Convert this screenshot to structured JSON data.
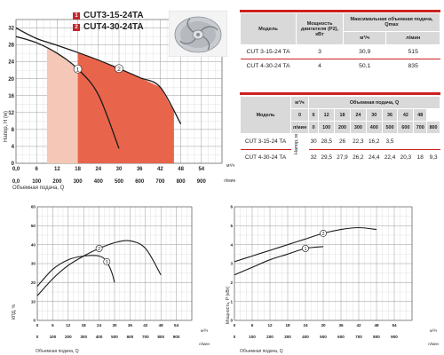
{
  "legend": [
    {
      "num": "1",
      "label": "CUT3-15-24TA"
    },
    {
      "num": "2",
      "label": "CUT4-30-24TA"
    }
  ],
  "table1": {
    "headers": {
      "model": "Модель",
      "power": "Мощность двигателя (P2), кВт",
      "qmax": "Максимальная объемная подача, Qmax",
      "unit_m3": "м³/ч",
      "unit_lmin": "л/мин"
    },
    "rows": [
      {
        "model": "CUT 3-15-24 TA",
        "power": "3",
        "m3": "30,9",
        "lmin": "515"
      },
      {
        "model": "CUT 4-30-24 TA",
        "power": "4",
        "m3": "50,1",
        "lmin": "835"
      }
    ]
  },
  "table2": {
    "headers": {
      "model": "Модель",
      "flow": "Объемная подача, Q",
      "unit_m3": "м³/ч",
      "unit_lmin": "л/мин",
      "head": "Напор, м"
    },
    "m3": [
      "0",
      "6",
      "12",
      "18",
      "24",
      "30",
      "36",
      "42",
      "48"
    ],
    "lmin": [
      "0",
      "100",
      "200",
      "300",
      "400",
      "500",
      "600",
      "700",
      "800"
    ],
    "rows": [
      {
        "model": "CUT 3-15-24 TA",
        "values": [
          "30",
          "28,5",
          "26",
          "22,3",
          "16,2",
          "3,5",
          "",
          "",
          ""
        ]
      },
      {
        "model": "CUT 4-30-24 TA",
        "values": [
          "32",
          "29,5",
          "27,9",
          "26,2",
          "24,4",
          "22,4",
          "20,3",
          "18",
          "9,3"
        ]
      }
    ]
  },
  "chart_data": [
    {
      "type": "line",
      "ylabel": "Напор, H (м)",
      "xlabel": "Объемная подача, Q",
      "x_unit": "м³/ч",
      "x2_unit": "л/мин",
      "xlim": [
        0,
        60
      ],
      "ylim": [
        0,
        34
      ],
      "x_ticks": [
        "0,0",
        "6",
        "12",
        "18",
        "24",
        "30",
        "36",
        "42",
        "48",
        "54"
      ],
      "x2_ticks": [
        "0,0",
        "100",
        "200",
        "300",
        "400",
        "500",
        "600",
        "700",
        "800",
        "900"
      ],
      "y_ticks": [
        "0",
        "4",
        "8",
        "12",
        "16",
        "20",
        "24",
        "28",
        "32"
      ],
      "series": [
        {
          "name": "1",
          "x": [
            0,
            6,
            12,
            18,
            24,
            30
          ],
          "y": [
            30,
            28.5,
            26,
            22.3,
            16.2,
            3.5
          ]
        },
        {
          "name": "2",
          "x": [
            0,
            6,
            12,
            18,
            24,
            30,
            36,
            42,
            48
          ],
          "y": [
            32,
            29.5,
            27.9,
            26.2,
            24.4,
            22.4,
            20.3,
            18,
            9.3
          ]
        }
      ]
    },
    {
      "type": "line",
      "ylabel": "КПД, %",
      "xlabel": "Объемная подача, Q",
      "x_unit": "м³/ч",
      "x2_unit": "л/мин",
      "xlim": [
        0,
        60
      ],
      "ylim": [
        0,
        60
      ],
      "x_ticks": [
        "0",
        "6",
        "12",
        "18",
        "24",
        "30",
        "36",
        "42",
        "48",
        "54"
      ],
      "x2_ticks": [
        "0",
        "100",
        "200",
        "300",
        "400",
        "500",
        "600",
        "700",
        "800",
        "900"
      ],
      "y_ticks": [
        "0",
        "10",
        "20",
        "30",
        "40",
        "50",
        "60"
      ],
      "series": [
        {
          "name": "1",
          "x": [
            0,
            6,
            12,
            18,
            24,
            27,
            29,
            30
          ],
          "y": [
            18,
            27,
            32,
            34,
            34,
            31,
            25,
            20
          ]
        },
        {
          "name": "2",
          "x": [
            0,
            6,
            12,
            18,
            24,
            30,
            36,
            42,
            48
          ],
          "y": [
            13,
            22,
            29,
            34,
            38,
            41,
            42,
            38,
            24
          ]
        }
      ]
    },
    {
      "type": "line",
      "ylabel": "Мощность, P (кВт)",
      "xlabel": "Объемная подача, Q",
      "x_unit": "м³/ч",
      "x2_unit": "л/мин",
      "xlim": [
        0,
        60
      ],
      "ylim": [
        0,
        6
      ],
      "x_ticks": [
        "0",
        "6",
        "12",
        "18",
        "24",
        "30",
        "36",
        "42",
        "48",
        "54"
      ],
      "x2_ticks": [
        "0",
        "100",
        "200",
        "300",
        "400",
        "500",
        "600",
        "700",
        "800",
        "900"
      ],
      "y_ticks": [
        "0",
        "1",
        "2",
        "3",
        "4",
        "5",
        "6"
      ],
      "series": [
        {
          "name": "1",
          "x": [
            0,
            6,
            12,
            18,
            24,
            30
          ],
          "y": [
            2.4,
            2.8,
            3.2,
            3.5,
            3.8,
            3.9
          ]
        },
        {
          "name": "2",
          "x": [
            0,
            6,
            12,
            18,
            24,
            30,
            36,
            42,
            48
          ],
          "y": [
            3.1,
            3.4,
            3.7,
            4.0,
            4.3,
            4.6,
            4.8,
            4.9,
            4.8
          ]
        }
      ]
    }
  ]
}
